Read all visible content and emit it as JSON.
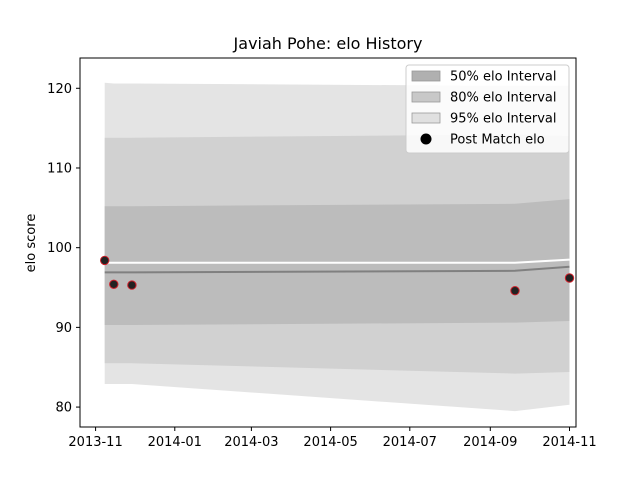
{
  "chart_data": {
    "type": "line",
    "title": "Javiah Pohe: elo History",
    "xlabel": "",
    "ylabel": "elo score",
    "x_ticks": [
      "2013-11",
      "2014-01",
      "2014-03",
      "2014-05",
      "2014-07",
      "2014-09",
      "2014-11"
    ],
    "y_ticks": [
      "80",
      "90",
      "100",
      "110",
      "120"
    ],
    "x_range": [
      "2013-10-20",
      "2014-11-06"
    ],
    "ylim": [
      77.5,
      123.8
    ],
    "grid": false,
    "legend_position": "top-right",
    "x": [
      "2013-11-08",
      "2013-11-15",
      "2013-11-29",
      "2014-09-20",
      "2014-11-01"
    ],
    "series": [
      {
        "kind": "band",
        "name": "95% elo Interval",
        "color": "#e4e4e4",
        "upper": [
          120.7,
          120.6,
          120.6,
          120.3,
          120.3
        ],
        "lower": [
          82.9,
          82.9,
          82.9,
          79.5,
          80.3
        ]
      },
      {
        "kind": "band",
        "name": "80% elo Interval",
        "color": "#d1d1d1",
        "upper": [
          113.8,
          113.8,
          113.8,
          114.2,
          114.0
        ],
        "lower": [
          85.5,
          85.5,
          85.5,
          84.2,
          84.4
        ]
      },
      {
        "kind": "band",
        "name": "50% elo Interval",
        "color": "#bcbcbc",
        "upper": [
          105.2,
          105.2,
          105.2,
          105.5,
          106.1
        ],
        "lower": [
          90.3,
          90.3,
          90.3,
          90.6,
          90.8
        ]
      },
      {
        "kind": "line",
        "color": "#ffffff",
        "values": [
          98.1,
          98.1,
          98.1,
          98.1,
          98.5
        ]
      },
      {
        "kind": "line",
        "color": "#808080",
        "values": [
          96.9,
          96.9,
          96.9,
          97.1,
          97.6
        ]
      },
      {
        "kind": "scatter",
        "name": "Post Match elo",
        "color": "#222222",
        "edge": "#d0202a",
        "values": [
          98.4,
          95.4,
          95.3,
          94.6,
          96.2
        ]
      }
    ],
    "legend": [
      {
        "label": "50% elo Interval",
        "symbol": "patch",
        "color": "#b0b0b0"
      },
      {
        "label": "80% elo Interval",
        "symbol": "patch",
        "color": "#c8c8c8"
      },
      {
        "label": "95% elo Interval",
        "symbol": "patch",
        "color": "#e0e0e0"
      },
      {
        "label": "Post Match elo",
        "symbol": "dot",
        "color": "#000000"
      }
    ]
  }
}
